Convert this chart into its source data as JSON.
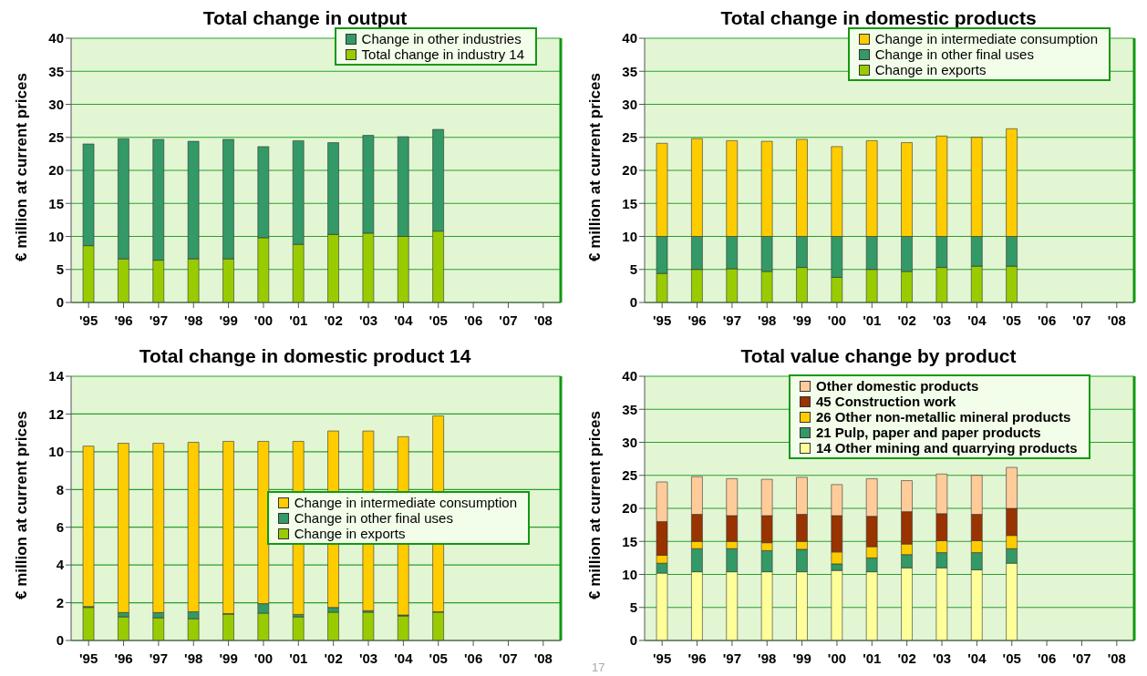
{
  "chart_data": [
    {
      "type": "bar",
      "title": "Total change in output",
      "ylabel": "€ million at current prices",
      "categories": [
        "'95",
        "'96",
        "'97",
        "'98",
        "'99",
        "'00",
        "'01",
        "'02",
        "'03",
        "'04",
        "'05",
        "'06",
        "'07",
        "'08"
      ],
      "stacked": true,
      "ylim": [
        0,
        40
      ],
      "yticks": [
        0,
        5,
        10,
        15,
        20,
        25,
        30,
        35,
        40
      ],
      "grid": "y",
      "legend": "top right",
      "series": [
        {
          "name": "Total change in industry 14",
          "color": "#99cc00",
          "values": [
            8.6,
            6.6,
            6.4,
            6.6,
            6.6,
            9.8,
            8.8,
            10.3,
            10.5,
            10.0,
            10.8,
            null,
            null,
            null
          ]
        },
        {
          "name": "Change in other industries",
          "color": "#339966",
          "values": [
            15.4,
            18.2,
            18.3,
            17.8,
            18.1,
            13.8,
            15.7,
            13.9,
            14.8,
            15.1,
            15.4,
            null,
            null,
            null
          ]
        }
      ]
    },
    {
      "type": "bar",
      "title": "Total change in domestic products",
      "ylabel": "€ million at current prices",
      "categories": [
        "'95",
        "'96",
        "'97",
        "'98",
        "'99",
        "'00",
        "'01",
        "'02",
        "'03",
        "'04",
        "'05",
        "'06",
        "'07",
        "'08"
      ],
      "stacked": true,
      "ylim": [
        0,
        40
      ],
      "yticks": [
        0,
        5,
        10,
        15,
        20,
        25,
        30,
        35,
        40
      ],
      "grid": "y",
      "legend": "top right",
      "series": [
        {
          "name": "Change in exports",
          "color": "#99cc00",
          "values": [
            4.4,
            5.0,
            5.1,
            4.7,
            5.3,
            3.8,
            5.0,
            4.7,
            5.3,
            5.5,
            5.5,
            null,
            null,
            null
          ]
        },
        {
          "name": "Change in other final uses",
          "color": "#339966",
          "values": [
            5.6,
            5.0,
            4.9,
            5.3,
            4.7,
            6.2,
            5.0,
            5.3,
            4.7,
            4.5,
            4.5,
            null,
            null,
            null
          ]
        },
        {
          "name": "Change in intermediate consumption",
          "color": "#ffcc00",
          "values": [
            14.1,
            14.8,
            14.5,
            14.4,
            14.7,
            13.6,
            14.5,
            14.2,
            15.2,
            15.0,
            16.3,
            null,
            null,
            null
          ]
        }
      ]
    },
    {
      "type": "bar",
      "title": "Total change in domestic product 14",
      "ylabel": "€ million at current prices",
      "categories": [
        "'95",
        "'96",
        "'97",
        "'98",
        "'99",
        "'00",
        "'01",
        "'02",
        "'03",
        "'04",
        "'05",
        "'06",
        "'07",
        "'08"
      ],
      "stacked": true,
      "ylim": [
        0,
        14
      ],
      "yticks": [
        0,
        2,
        4,
        6,
        8,
        10,
        12,
        14
      ],
      "grid": "y",
      "legend": "right",
      "series": [
        {
          "name": "Change in exports",
          "color": "#99cc00",
          "values": [
            1.75,
            1.25,
            1.2,
            1.15,
            1.4,
            1.45,
            1.25,
            1.5,
            1.5,
            1.3,
            1.5,
            null,
            null,
            null
          ]
        },
        {
          "name": "Change in other final uses",
          "color": "#339966",
          "values": [
            0.05,
            0.23,
            0.28,
            0.37,
            0.02,
            0.5,
            0.13,
            0.25,
            0.08,
            0.05,
            0.02,
            null,
            null,
            null
          ]
        },
        {
          "name": "Change in intermediate consumption",
          "color": "#ffcc00",
          "values": [
            8.5,
            8.97,
            8.97,
            8.98,
            9.13,
            8.6,
            9.17,
            9.35,
            9.52,
            9.45,
            10.38,
            null,
            null,
            null
          ]
        }
      ]
    },
    {
      "type": "bar",
      "title": "Total value change by product",
      "ylabel": "€ million at current prices",
      "categories": [
        "'95",
        "'96",
        "'97",
        "'98",
        "'99",
        "'00",
        "'01",
        "'02",
        "'03",
        "'04",
        "'05",
        "'06",
        "'07",
        "'08"
      ],
      "stacked": true,
      "ylim": [
        0,
        40
      ],
      "yticks": [
        0,
        5,
        10,
        15,
        20,
        25,
        30,
        35,
        40
      ],
      "grid": "y",
      "legend": "top",
      "annotations": [
        "17"
      ],
      "series": [
        {
          "name": "14 Other mining and quarrying products",
          "color": "#ffff99",
          "values": [
            10.2,
            10.4,
            10.4,
            10.4,
            10.4,
            10.6,
            10.4,
            11.0,
            11.0,
            10.7,
            11.7,
            null,
            null,
            null
          ]
        },
        {
          "name": "21 Pulp, paper and paper products",
          "color": "#339966",
          "values": [
            1.5,
            3.5,
            3.5,
            3.2,
            3.4,
            1.0,
            2.1,
            2.0,
            2.3,
            2.6,
            2.2,
            null,
            null,
            null
          ]
        },
        {
          "name": "26 Other non-metallic mineral products",
          "color": "#ffcc00",
          "values": [
            1.2,
            1.1,
            1.1,
            1.2,
            1.2,
            1.8,
            1.7,
            1.6,
            1.8,
            1.8,
            2.0,
            null,
            null,
            null
          ]
        },
        {
          "name": "45 Construction work",
          "color": "#993300",
          "values": [
            5.1,
            4.1,
            3.9,
            4.1,
            4.1,
            5.5,
            4.6,
            4.9,
            4.1,
            4.0,
            4.1,
            null,
            null,
            null
          ]
        },
        {
          "name": "Other domestic products",
          "color": "#ffcc99",
          "values": [
            6.0,
            5.7,
            5.6,
            5.5,
            5.6,
            4.7,
            5.7,
            4.7,
            6.0,
            5.9,
            6.2,
            null,
            null,
            null
          ]
        }
      ]
    }
  ]
}
